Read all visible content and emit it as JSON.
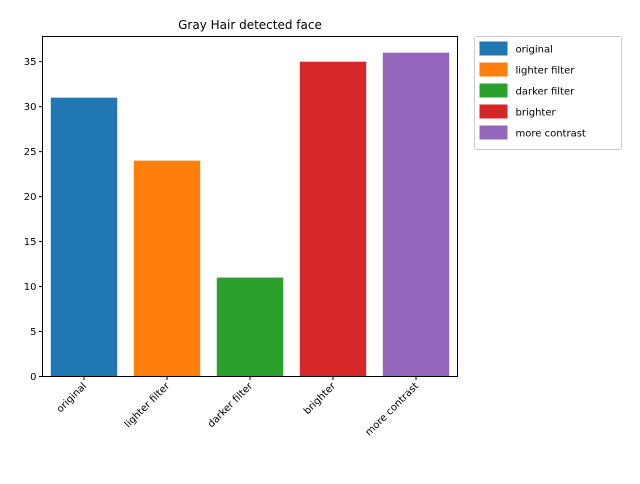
{
  "chart_data": {
    "type": "bar",
    "title": "Gray Hair detected face",
    "xlabel": "",
    "ylabel": "",
    "categories": [
      "original",
      "lighter filter",
      "darker filter",
      "brighter",
      "more contrast"
    ],
    "values": [
      31,
      24,
      11,
      35,
      36
    ],
    "colors": [
      "#1f77b4",
      "#ff7f0e",
      "#2ca02c",
      "#d62728",
      "#9467bd"
    ],
    "ylim": [
      0,
      37.8
    ],
    "yticks": [
      0,
      5,
      10,
      15,
      20,
      25,
      30,
      35
    ],
    "grid": false,
    "legend": {
      "placement": "outside-top-right",
      "entries": [
        "original",
        "lighter filter",
        "darker filter",
        "brighter",
        "more contrast"
      ]
    }
  }
}
